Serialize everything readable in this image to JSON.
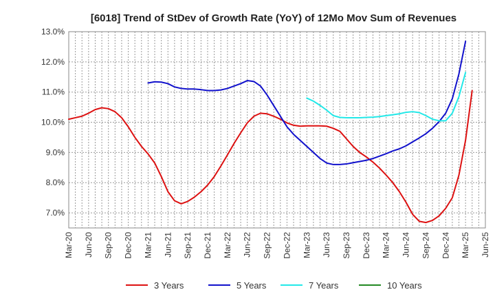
{
  "chart_data": {
    "type": "line",
    "title": "[6018]  Trend of StDev of Growth Rate (YoY) of 12Mo Mov Sum of Revenues",
    "xlabel": "",
    "ylabel": "",
    "ylim": [
      6.5,
      13.0
    ],
    "yticks": [
      7.0,
      8.0,
      9.0,
      10.0,
      11.0,
      12.0,
      13.0
    ],
    "ytick_labels": [
      "7.0%",
      "8.0%",
      "9.0%",
      "10.0%",
      "11.0%",
      "12.0%",
      "13.0%"
    ],
    "xtick_labels": [
      "Mar-20",
      "Jun-20",
      "Sep-20",
      "Dec-20",
      "Mar-21",
      "Jun-21",
      "Sep-21",
      "Dec-21",
      "Mar-22",
      "Jun-22",
      "Sep-22",
      "Dec-22",
      "Mar-23",
      "Jun-23",
      "Sep-23",
      "Dec-23",
      "Mar-24",
      "Jun-24",
      "Sep-24",
      "Dec-24",
      "Mar-25",
      "Jun-25"
    ],
    "grid": true,
    "legend_position": "bottom",
    "series": [
      {
        "name": "3 Years",
        "color": "#dd1111",
        "start_index": 0,
        "values": [
          10.1,
          10.15,
          10.2,
          10.3,
          10.42,
          10.48,
          10.45,
          10.35,
          10.15,
          9.85,
          9.5,
          9.2,
          8.95,
          8.65,
          8.2,
          7.7,
          7.4,
          7.3,
          7.38,
          7.52,
          7.7,
          7.92,
          8.2,
          8.55,
          8.92,
          9.3,
          9.65,
          9.98,
          10.2,
          10.3,
          10.28,
          10.2,
          10.1,
          9.98,
          9.9,
          9.87,
          9.88,
          9.88,
          9.88,
          9.87,
          9.8,
          9.7,
          9.45,
          9.2,
          9.0,
          8.85,
          8.68,
          8.48,
          8.25,
          8.0,
          7.7,
          7.35,
          6.95,
          6.72,
          6.68,
          6.75,
          6.9,
          7.15,
          7.5,
          8.25,
          9.4,
          11.05
        ]
      },
      {
        "name": "5 Years",
        "color": "#1111cc",
        "start_index": 12,
        "values": [
          11.3,
          11.34,
          11.33,
          11.28,
          11.17,
          11.12,
          11.1,
          11.1,
          11.08,
          11.05,
          11.05,
          11.07,
          11.12,
          11.2,
          11.28,
          11.38,
          11.35,
          11.2,
          10.9,
          10.55,
          10.2,
          9.85,
          9.6,
          9.4,
          9.2,
          9.0,
          8.8,
          8.65,
          8.6,
          8.6,
          8.62,
          8.66,
          8.7,
          8.74,
          8.8,
          8.88,
          8.96,
          9.05,
          9.12,
          9.22,
          9.35,
          9.48,
          9.62,
          9.8,
          10.02,
          10.3,
          10.78,
          11.6,
          12.68
        ]
      },
      {
        "name": "7 Years",
        "color": "#22e8e8",
        "start_index": 36,
        "values": [
          10.8,
          10.7,
          10.56,
          10.4,
          10.22,
          10.16,
          10.15,
          10.15,
          10.15,
          10.16,
          10.17,
          10.19,
          10.22,
          10.25,
          10.28,
          10.33,
          10.35,
          10.32,
          10.22,
          10.1,
          10.05,
          10.05,
          10.3,
          10.85,
          11.65
        ]
      },
      {
        "name": "10 Years",
        "color": "#228822",
        "start_index": 0,
        "values": []
      }
    ]
  }
}
